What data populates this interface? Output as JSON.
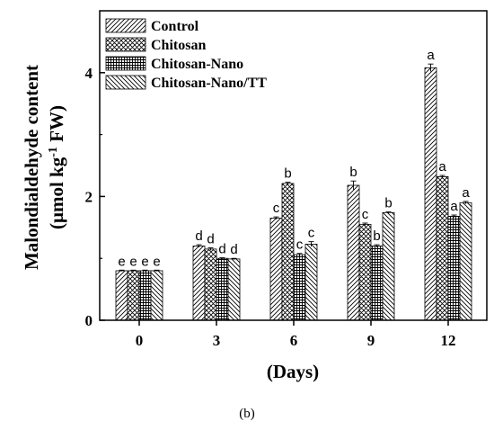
{
  "caption": "(b)",
  "chart_data": {
    "type": "bar",
    "xlabel": "(Days)",
    "ylabel_line1": "Malondialdehyde content",
    "ylabel_line2_prefix": "(μmol kg",
    "ylabel_line2_sup": "-1",
    "ylabel_line2_suffix": " FW)",
    "categories": [
      "0",
      "3",
      "6",
      "9",
      "12"
    ],
    "ylim": [
      0,
      5
    ],
    "yticks": [
      0,
      2,
      4
    ],
    "legend_position": "top-left",
    "series": [
      {
        "name": "Control",
        "pattern": "diag-up",
        "values": [
          0.8,
          1.2,
          1.65,
          2.18,
          4.08
        ],
        "errors": [
          0.01,
          0.02,
          0.02,
          0.07,
          0.06
        ],
        "letters": [
          "e",
          "d",
          "c",
          "b",
          "a"
        ]
      },
      {
        "name": "Chitosan",
        "pattern": "crosshatch",
        "values": [
          0.8,
          1.15,
          2.21,
          1.55,
          2.32
        ],
        "errors": [
          0.01,
          0.02,
          0.02,
          0.02,
          0.02
        ],
        "letters": [
          "e",
          "d",
          "b",
          "c",
          "a"
        ]
      },
      {
        "name": "Chitosan-Nano",
        "pattern": "grid",
        "values": [
          0.8,
          1.0,
          1.06,
          1.2,
          1.68
        ],
        "errors": [
          0.01,
          0.01,
          0.02,
          0.02,
          0.02
        ],
        "letters": [
          "e",
          "d",
          "c",
          "b",
          "a"
        ]
      },
      {
        "name": "Chitosan-Nano/TT",
        "pattern": "diag-down",
        "values": [
          0.8,
          0.99,
          1.23,
          1.74,
          1.9
        ],
        "errors": [
          0.01,
          0.01,
          0.04,
          0.01,
          0.02
        ],
        "letters": [
          "e",
          "d",
          "c",
          "b",
          "a"
        ]
      }
    ]
  }
}
